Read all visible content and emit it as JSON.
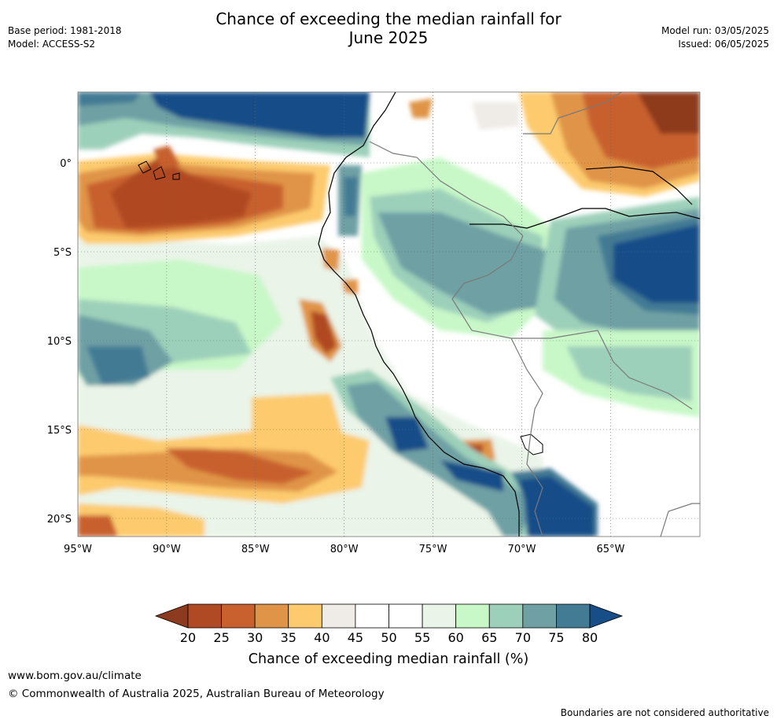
{
  "header": {
    "title_line1": "Chance of exceeding the median rainfall for",
    "title_line2": "June 2025",
    "base_period": "Base period: 1981-2018",
    "model": "Model: ACCESS-S2",
    "model_run": "Model run: 03/05/2025",
    "issued": "Issued: 06/05/2025"
  },
  "map": {
    "lon_ticks": [
      "95°W",
      "90°W",
      "85°W",
      "80°W",
      "75°W",
      "70°W",
      "65°W"
    ],
    "lat_ticks": [
      "0°",
      "5°S",
      "10°S",
      "15°S",
      "20°S"
    ],
    "region": "Western South America (Ecuador, Peru, Bolivia)"
  },
  "colorbar": {
    "label": "Chance of exceeding median rainfall (%)",
    "ticks": [
      "20",
      "25",
      "30",
      "35",
      "40",
      "45",
      "50",
      "55",
      "60",
      "65",
      "70",
      "75",
      "80"
    ],
    "colors": [
      "#8e3a1e",
      "#b04a24",
      "#c8612e",
      "#e09447",
      "#fdcb6e",
      "#efebe6",
      "#ffffff",
      "#ffffff",
      "#eaf4e8",
      "#c8f8c8",
      "#9dd0ba",
      "#6ea0a4",
      "#437a94",
      "#174e88"
    ]
  },
  "footer": {
    "website": "www.bom.gov.au/climate",
    "copyright": "© Commonwealth of Australia 2025, Australian Bureau of Meteorology",
    "disclaimer": "Boundaries are not considered authoritative"
  }
}
